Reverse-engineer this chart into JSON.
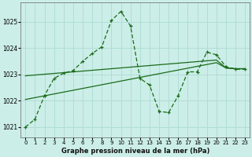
{
  "xlabel_label": "Graphe pression niveau de la mer (hPa)",
  "background_color": "#cceee8",
  "grid_color": "#b0ddd5",
  "line_color": "#1a6b1a",
  "x_values": [
    0,
    1,
    2,
    3,
    4,
    5,
    6,
    7,
    8,
    9,
    10,
    11,
    12,
    13,
    14,
    15,
    16,
    17,
    18,
    19,
    20,
    21,
    22,
    23
  ],
  "line_main": [
    1021.0,
    1021.3,
    1022.2,
    1022.85,
    1023.05,
    1023.15,
    1023.5,
    1023.8,
    1024.05,
    1025.05,
    1025.4,
    1024.85,
    1022.85,
    1022.6,
    1021.6,
    1021.55,
    1022.2,
    1023.1,
    1023.1,
    1023.85,
    1023.75,
    1023.3,
    1023.2,
    1023.2
  ],
  "line_trend1": [
    1022.95,
    1022.98,
    1023.01,
    1023.04,
    1023.07,
    1023.1,
    1023.13,
    1023.16,
    1023.19,
    1023.22,
    1023.25,
    1023.28,
    1023.31,
    1023.34,
    1023.37,
    1023.4,
    1023.43,
    1023.46,
    1023.49,
    1023.52,
    1023.55,
    1023.25,
    1023.22,
    1023.22
  ],
  "line_trend2": [
    1022.05,
    1022.12,
    1022.19,
    1022.26,
    1022.33,
    1022.4,
    1022.47,
    1022.54,
    1022.61,
    1022.68,
    1022.75,
    1022.82,
    1022.89,
    1022.96,
    1023.03,
    1023.1,
    1023.17,
    1023.24,
    1023.31,
    1023.38,
    1023.45,
    1023.25,
    1023.22,
    1023.22
  ],
  "ylim": [
    1020.6,
    1025.75
  ],
  "yticks": [
    1021,
    1022,
    1023,
    1024,
    1025
  ],
  "xticks": [
    0,
    1,
    2,
    3,
    4,
    5,
    6,
    7,
    8,
    9,
    10,
    11,
    12,
    13,
    14,
    15,
    16,
    17,
    18,
    19,
    20,
    21,
    22,
    23
  ]
}
